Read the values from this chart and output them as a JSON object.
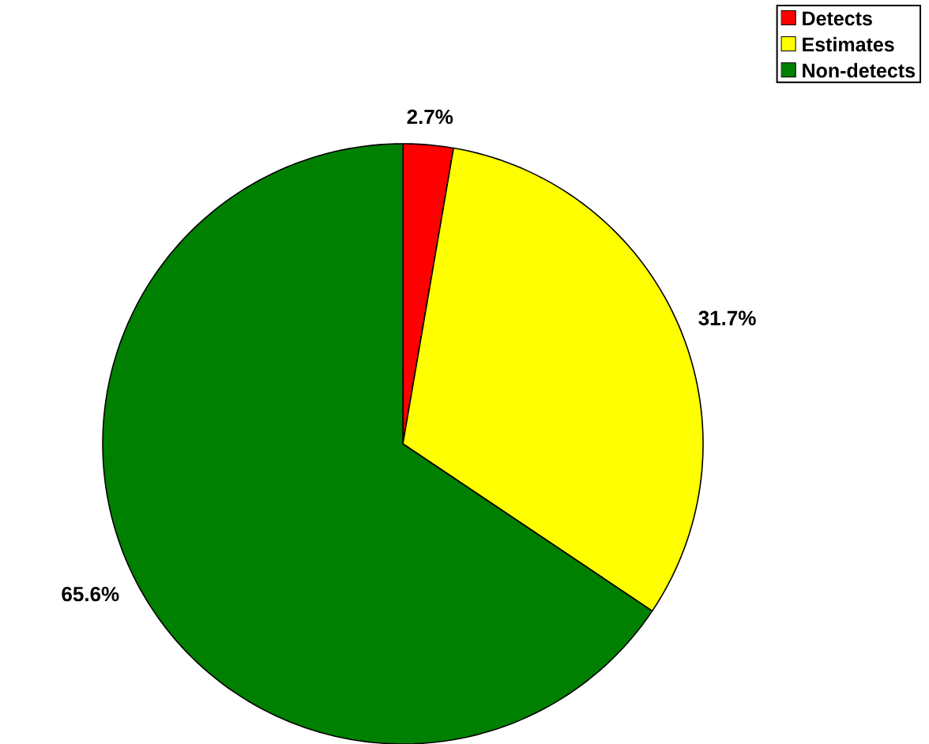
{
  "chart_data": {
    "type": "pie",
    "categories": [
      "Detects",
      "Estimates",
      "Non-detects"
    ],
    "values": [
      2.7,
      31.7,
      65.6
    ],
    "colors": [
      "#ff0000",
      "#ffff00",
      "#008000"
    ],
    "value_labels": [
      "2.7%",
      "31.7%",
      "65.6%"
    ],
    "legend": "top right"
  }
}
